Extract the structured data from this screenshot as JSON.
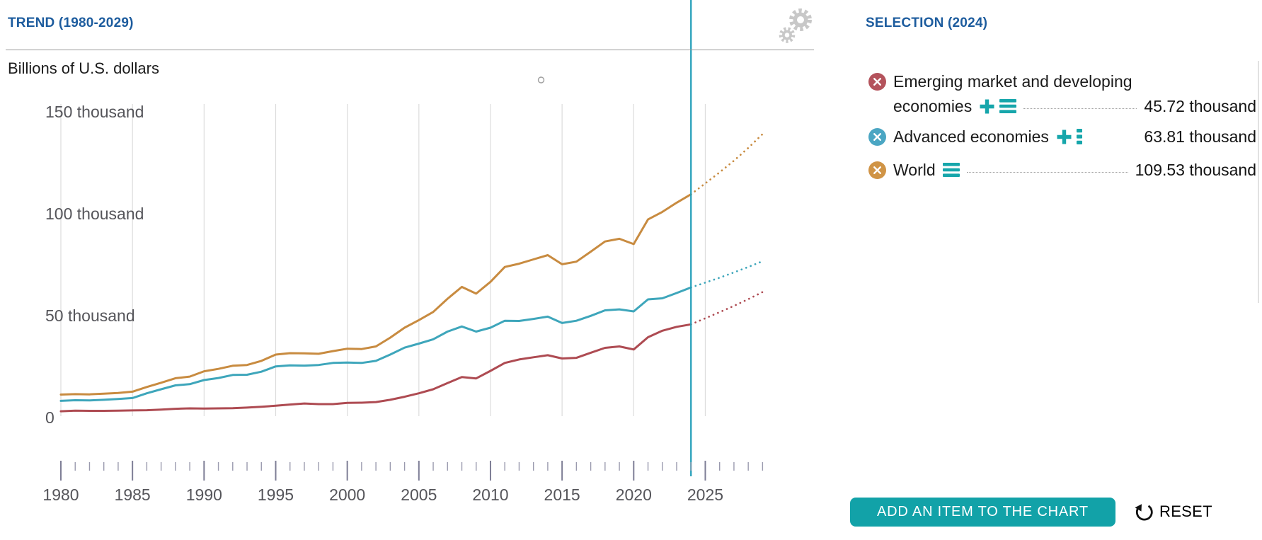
{
  "header": {
    "trend_title": "TREND (1980-2029)",
    "selection_title": "SELECTION (2024)"
  },
  "chart_data": {
    "type": "line",
    "title": "TREND (1980-2029)",
    "units_label": "Billions of U.S. dollars",
    "year_start": 1980,
    "year_end": 2029,
    "selection_year": 2024,
    "projection_start_year": 2024,
    "grid": "vertical-gridlines-every-5-years",
    "legend_position": "right-panel",
    "x_axis": {
      "range": [
        1980,
        2029
      ],
      "major_tick_interval": 5,
      "minor_tick_interval": 1,
      "tick_labels": [
        "1980",
        "1985",
        "1990",
        "1995",
        "2000",
        "2005",
        "2010",
        "2015",
        "2020",
        "2025"
      ]
    },
    "y_axis": {
      "range": [
        0,
        150
      ],
      "ticks": [
        {
          "value": 0,
          "label": "0"
        },
        {
          "value": 50,
          "label": "50 thousand"
        },
        {
          "value": 100,
          "label": "100 thousand"
        },
        {
          "value": 150,
          "label": "150 thousand"
        }
      ]
    },
    "series": [
      {
        "name": "Emerging market and developing economies",
        "color": "#ae4b52",
        "values": [
          3.1,
          3.4,
          3.3,
          3.3,
          3.4,
          3.5,
          3.6,
          3.9,
          4.3,
          4.5,
          4.4,
          4.5,
          4.6,
          4.9,
          5.3,
          5.8,
          6.4,
          6.9,
          6.6,
          6.6,
          7.2,
          7.3,
          7.6,
          8.7,
          10.2,
          11.9,
          13.9,
          16.9,
          19.9,
          19.2,
          22.9,
          26.8,
          28.5,
          29.6,
          30.6,
          29.0,
          29.3,
          31.8,
          34.2,
          34.9,
          33.4,
          39.4,
          42.6,
          44.5,
          45.72,
          48.7,
          51.7,
          54.8,
          58.1,
          61.6
        ]
      },
      {
        "name": "Advanced economies",
        "color": "#3ea6bb",
        "values": [
          8.2,
          8.5,
          8.4,
          8.7,
          9.1,
          9.6,
          11.9,
          13.9,
          15.8,
          16.4,
          18.4,
          19.4,
          20.9,
          21.0,
          22.5,
          25.1,
          25.6,
          25.5,
          25.8,
          26.8,
          27.0,
          26.8,
          27.8,
          30.9,
          34.3,
          36.3,
          38.4,
          42.2,
          44.7,
          42.2,
          44.1,
          47.5,
          47.4,
          48.4,
          49.5,
          46.4,
          47.5,
          49.9,
          52.6,
          53.1,
          52.1,
          58.0,
          58.5,
          61.1,
          63.81,
          66.2,
          68.6,
          71.2,
          73.9,
          76.7
        ]
      },
      {
        "name": "World",
        "color": "#c88b40",
        "values": [
          11.3,
          11.5,
          11.4,
          11.7,
          12.1,
          12.7,
          15.0,
          17.1,
          19.3,
          20.1,
          22.7,
          23.9,
          25.4,
          25.8,
          27.8,
          30.9,
          31.6,
          31.5,
          31.3,
          32.6,
          33.8,
          33.6,
          34.9,
          39.2,
          44.1,
          47.8,
          51.8,
          58.3,
          64.1,
          60.8,
          66.6,
          73.9,
          75.5,
          77.6,
          79.7,
          75.2,
          76.5,
          81.4,
          86.4,
          87.7,
          85.1,
          97.2,
          100.9,
          105.4,
          109.53,
          114.9,
          120.3,
          126.0,
          132.3,
          139.1
        ]
      }
    ]
  },
  "selection": {
    "title": "SELECTION (2024)",
    "items": [
      {
        "label_lines": [
          "Emerging market and developing",
          "economies"
        ],
        "value_label": "45.72 thousand",
        "color": "#b4535c"
      },
      {
        "label_lines": [
          "Advanced economies"
        ],
        "value_label": "63.81 thousand",
        "color": "#4ba6c3"
      },
      {
        "label_lines": [
          "World"
        ],
        "value_label": "109.53 thousand",
        "color": "#d09446"
      }
    ],
    "add_button_label": "ADD AN ITEM TO THE CHART",
    "reset_label": "RESET"
  },
  "icons": {
    "remove_item": "circle-with-x",
    "add_item": "teal-plus",
    "item_list": "hamburger-bars",
    "item_dots": "vertical-dots",
    "settings": "double-gear",
    "reset": "counterclockwise-arrow"
  },
  "colors": {
    "heading_blue": "#1d5c9e",
    "accent_teal": "#12a2a8",
    "selection_line_teal": "#1d9cb7",
    "gridline": "#dcdcdc",
    "axis_text": "#55555a"
  }
}
